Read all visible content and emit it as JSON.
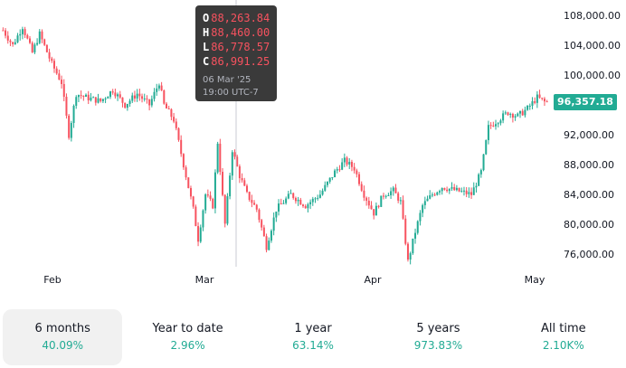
{
  "chart_data": {
    "type": "candlestick",
    "y_axis": {
      "ticks": [
        "108,000.00",
        "104,000.00",
        "100,000.00",
        "96,000.00",
        "92,000.00",
        "88,000.00",
        "84,000.00",
        "80,000.00",
        "76,000.00"
      ],
      "ylim": [
        74000,
        110000
      ]
    },
    "x_axis": {
      "ticks": [
        "Feb",
        "Mar",
        "Apr",
        "May"
      ]
    },
    "series_path": [
      [
        0,
        106000
      ],
      [
        4,
        104000
      ],
      [
        8,
        106500
      ],
      [
        12,
        103000
      ],
      [
        15,
        105500
      ],
      [
        20,
        101500
      ],
      [
        24,
        99000
      ],
      [
        27,
        92000
      ],
      [
        30,
        97500
      ],
      [
        34,
        97000
      ],
      [
        40,
        96500
      ],
      [
        45,
        98000
      ],
      [
        50,
        96000
      ],
      [
        55,
        97500
      ],
      [
        60,
        96000
      ],
      [
        64,
        99000
      ],
      [
        66,
        96000
      ],
      [
        70,
        94000
      ],
      [
        75,
        86500
      ],
      [
        78,
        82000
      ],
      [
        80,
        78000
      ],
      [
        83,
        84000
      ],
      [
        86,
        82500
      ],
      [
        88,
        91000
      ],
      [
        91,
        80000
      ],
      [
        94,
        90000
      ],
      [
        97,
        86500
      ],
      [
        100,
        84000
      ],
      [
        104,
        82000
      ],
      [
        108,
        77000
      ],
      [
        112,
        82000
      ],
      [
        118,
        84000
      ],
      [
        124,
        82500
      ],
      [
        130,
        84000
      ],
      [
        136,
        87000
      ],
      [
        140,
        88500
      ],
      [
        144,
        87500
      ],
      [
        148,
        84000
      ],
      [
        152,
        81500
      ],
      [
        156,
        84000
      ],
      [
        160,
        84500
      ],
      [
        163,
        83000
      ],
      [
        166,
        75000
      ],
      [
        169,
        79000
      ],
      [
        172,
        82500
      ],
      [
        176,
        84000
      ],
      [
        180,
        85000
      ],
      [
        186,
        84500
      ],
      [
        192,
        84000
      ],
      [
        196,
        87000
      ],
      [
        199,
        93000
      ],
      [
        203,
        94000
      ],
      [
        207,
        95000
      ],
      [
        211,
        94500
      ],
      [
        215,
        95500
      ],
      [
        219,
        97000
      ],
      [
        222,
        96400
      ]
    ],
    "last_price": "96,357.18",
    "tooltip": {
      "open": "88,263.84",
      "high": "88,460.00",
      "low": "86,778.57",
      "close": "86,991.25",
      "date": "06 Mar '25",
      "time": "19:00 UTC-7"
    },
    "grid": false,
    "colors": {
      "up": "#22ab94",
      "down": "#f7525f",
      "badge": "#22ab94"
    }
  },
  "tooltip_labels": {
    "open": "O",
    "high": "H",
    "low": "L",
    "close": "C"
  },
  "ranges": [
    {
      "label": "6 months",
      "change": "40.09%"
    },
    {
      "label": "Year to date",
      "change": "2.96%"
    },
    {
      "label": "1 year",
      "change": "63.14%"
    },
    {
      "label": "5 years",
      "change": "973.83%"
    },
    {
      "label": "All time",
      "change": "2.10K%"
    }
  ]
}
